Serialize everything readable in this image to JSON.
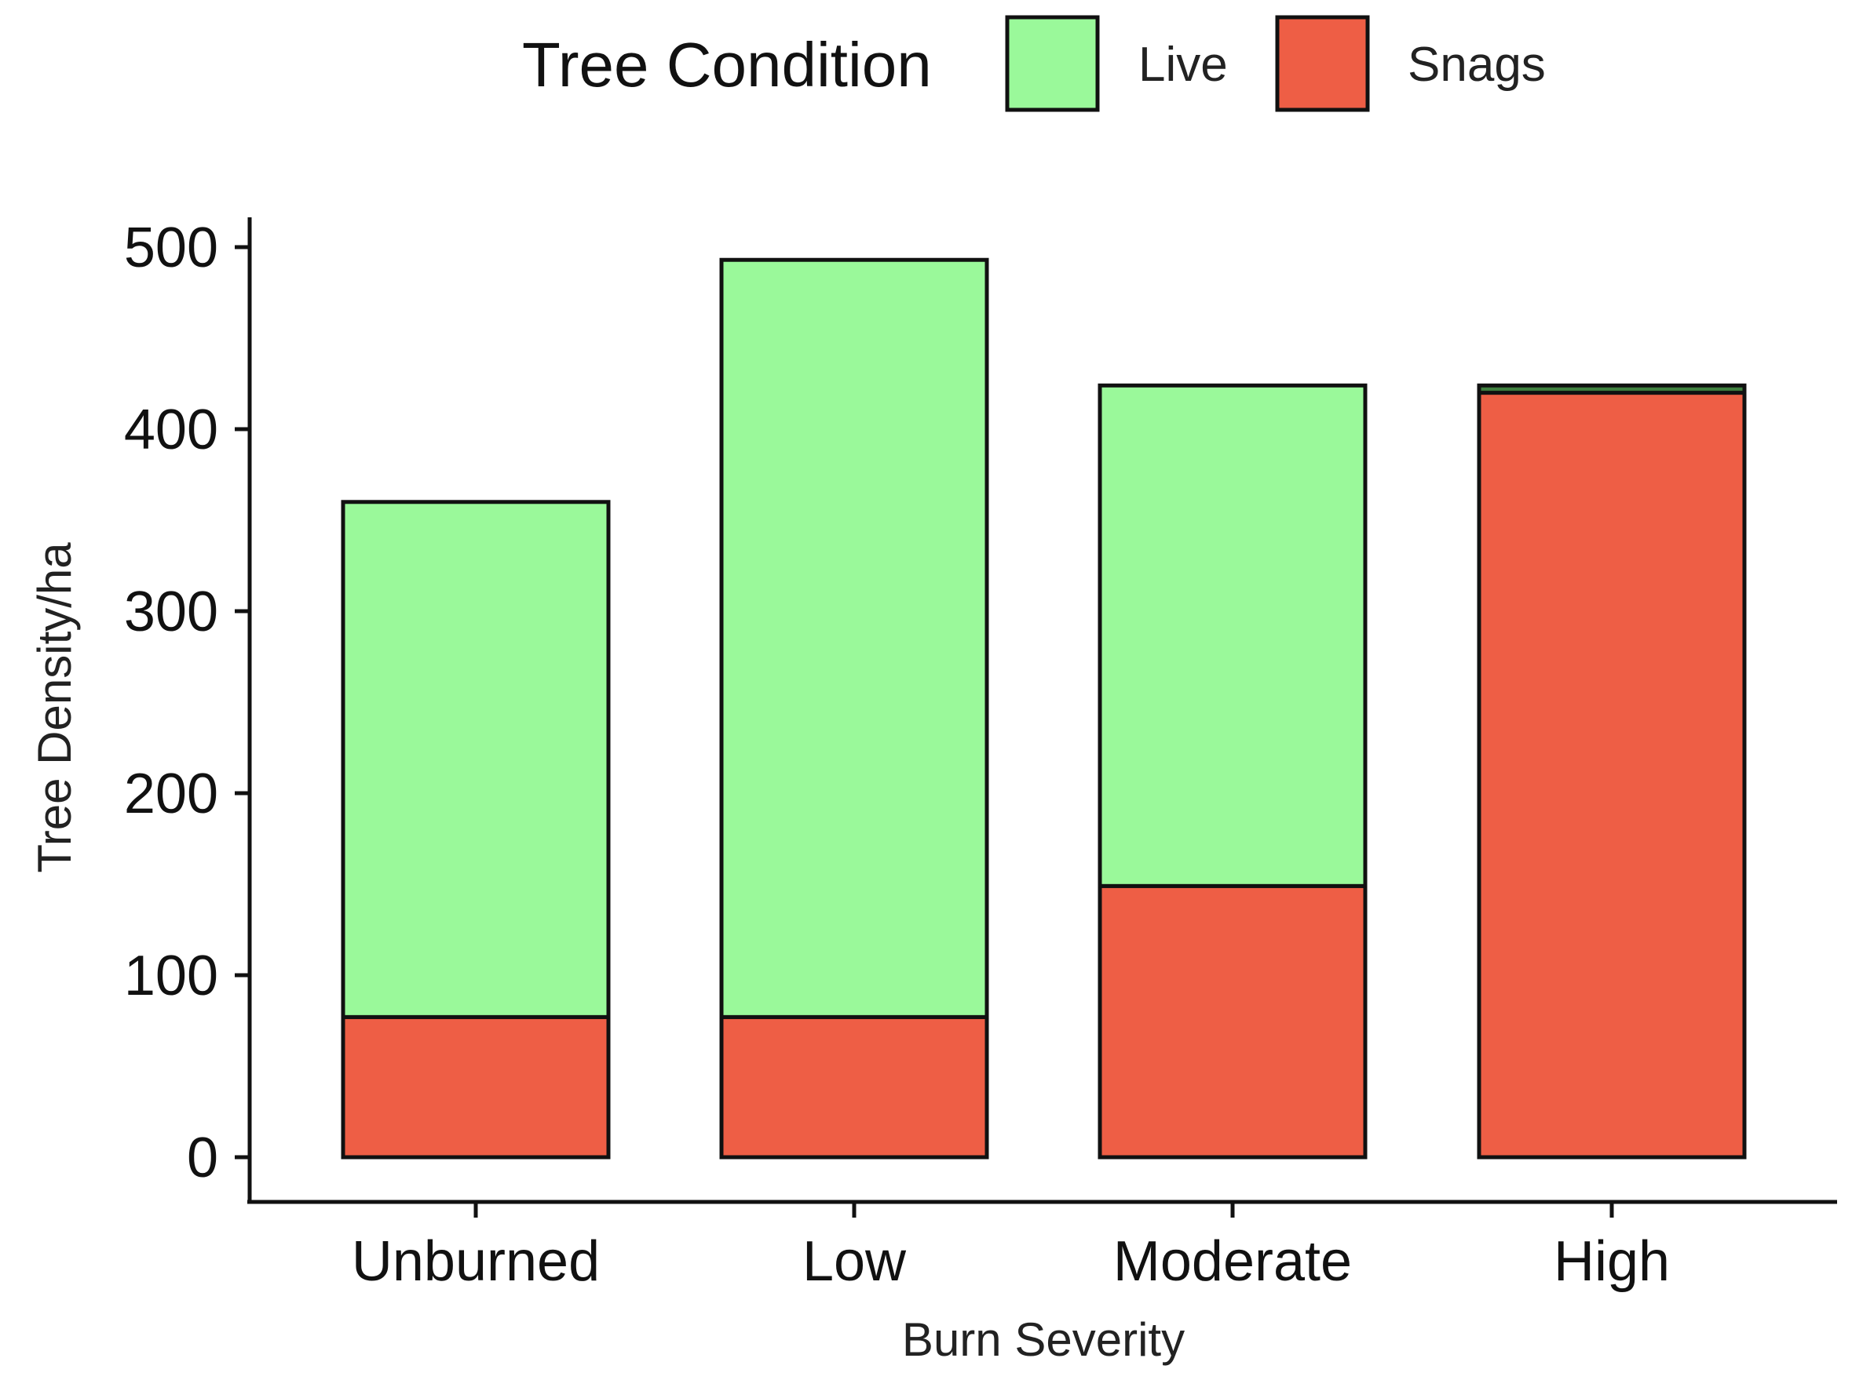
{
  "chart_data": {
    "type": "bar",
    "stacked": true,
    "categories": [
      "Unburned",
      "Low",
      "Moderate",
      "High"
    ],
    "series": [
      {
        "name": "Snags",
        "values": [
          77,
          77,
          149,
          420
        ],
        "color": "#EE5E45"
      },
      {
        "name": "Live",
        "values": [
          283,
          416,
          275,
          4
        ],
        "color": "#9AF99A"
      }
    ],
    "high_live_segment_color": "#3F7F3F",
    "title": "",
    "xlabel": "Burn Severity",
    "ylabel": "Tree Density/ha",
    "ylim": [
      0,
      500
    ],
    "yticks": [
      0,
      100,
      200,
      300,
      400,
      500
    ],
    "grid": false,
    "legend": {
      "title": "Tree Condition",
      "position": "top",
      "entries": [
        "Live",
        "Snags"
      ]
    }
  }
}
